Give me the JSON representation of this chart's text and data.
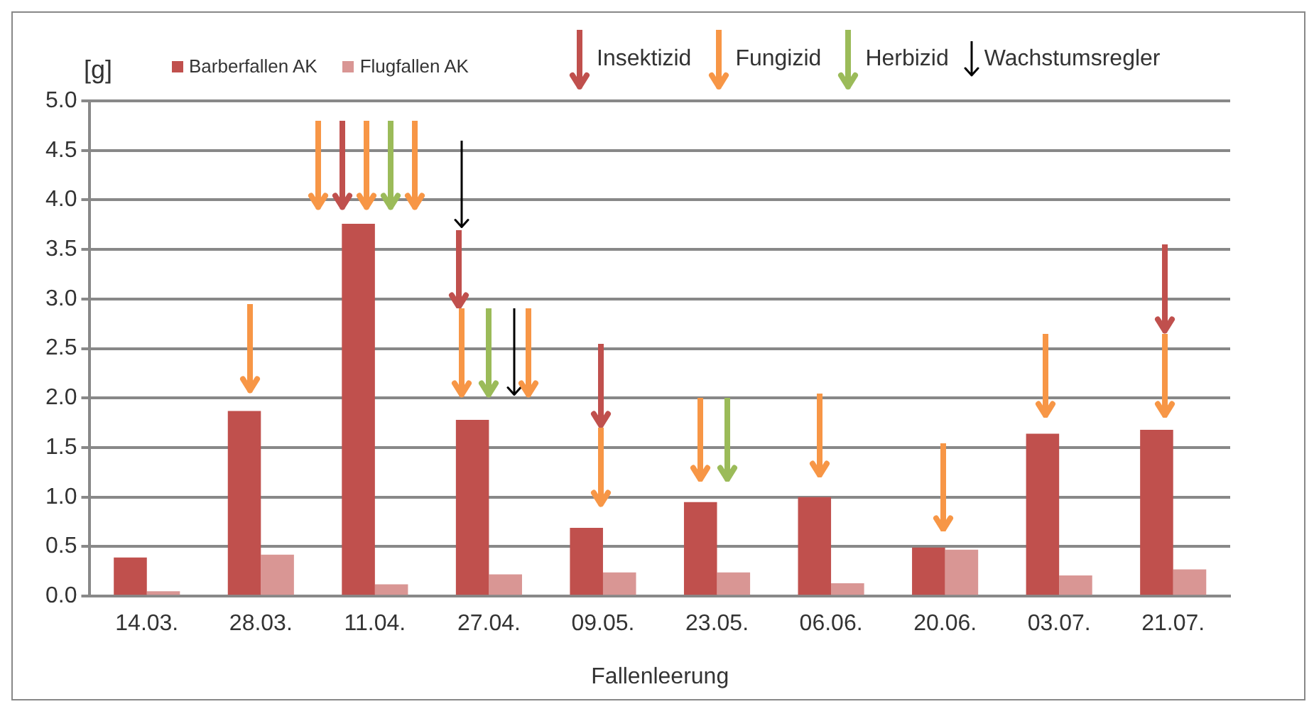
{
  "chart_data": {
    "type": "bar",
    "ylabel": "[g]",
    "xlabel": "Fallenleerung",
    "categories": [
      "14.03.",
      "28.03.",
      "11.04.",
      "27.04.",
      "09.05.",
      "23.05.",
      "06.06.",
      "20.06.",
      "03.07.",
      "21.07."
    ],
    "series": [
      {
        "name": "Barberfallen AK",
        "color": "#c0504d",
        "values": [
          0.39,
          1.87,
          3.76,
          1.78,
          0.69,
          0.95,
          1.0,
          0.49,
          1.64,
          1.68
        ]
      },
      {
        "name": "Flugfallen AK",
        "color": "#d99694",
        "values": [
          0.05,
          0.42,
          0.12,
          0.22,
          0.24,
          0.24,
          0.13,
          0.47,
          0.21,
          0.27
        ]
      }
    ],
    "ylim": [
      0,
      5
    ],
    "yticks": [
      {
        "value": 0,
        "label": "0.0"
      },
      {
        "value": 0.5,
        "label": "0.5"
      },
      {
        "value": 1,
        "label": "1.0"
      },
      {
        "value": 1.5,
        "label": "1.5"
      },
      {
        "value": 2,
        "label": "2.0"
      },
      {
        "value": 2.5,
        "label": "2.5"
      },
      {
        "value": 3,
        "label": "3.0"
      },
      {
        "value": 3.5,
        "label": "3.5"
      },
      {
        "value": 4,
        "label": "4.0"
      },
      {
        "value": 4.5,
        "label": "4.5"
      },
      {
        "value": 5,
        "label": "5.0"
      }
    ],
    "grid": "y",
    "legend": "top",
    "annotations": [
      "Insektizid",
      "Fungizid",
      "Herbizid",
      "Wachstumsregler"
    ]
  }
}
